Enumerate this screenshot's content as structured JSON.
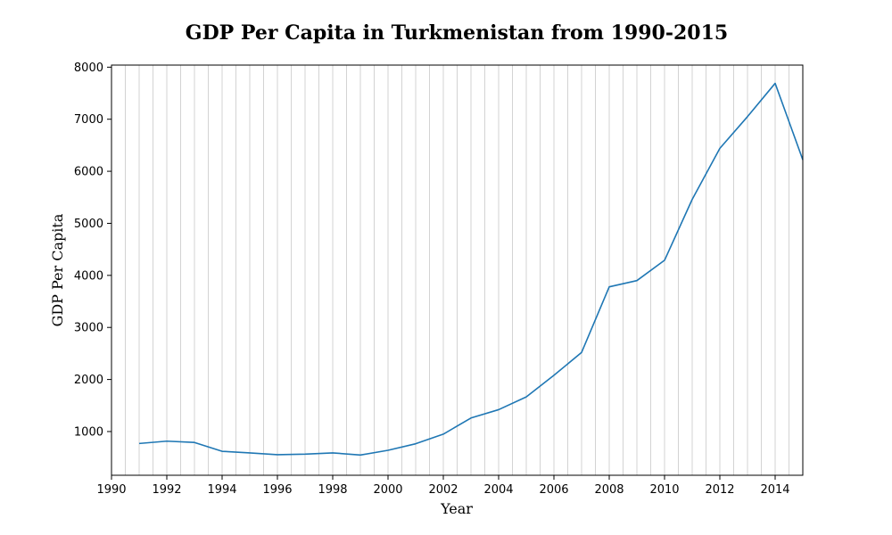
{
  "chart_data": {
    "type": "line",
    "title": "GDP Per Capita in Turkmenistan from 1990-2015",
    "xlabel": "Year",
    "ylabel": "GDP Per Capita",
    "xlim": [
      1990,
      2015
    ],
    "ylim": [
      160,
      8040
    ],
    "x_ticks": [
      1990,
      1992,
      1994,
      1996,
      1998,
      2000,
      2002,
      2004,
      2006,
      2008,
      2010,
      2012,
      2014
    ],
    "y_ticks": [
      1000,
      2000,
      3000,
      4000,
      5000,
      6000,
      7000,
      8000
    ],
    "vertical_grid": true,
    "grid_every": 0.5,
    "line_color": "#1f77b4",
    "grid_color": "#c8c8c8",
    "series": [
      {
        "x": [
          1991,
          1992,
          1993,
          1994,
          1995,
          1996,
          1997,
          1998,
          1999,
          2000,
          2001,
          2002,
          2003,
          2004,
          2005,
          2006,
          2007,
          2008,
          2009,
          2010,
          2011,
          2012,
          2013,
          2014,
          2015
        ],
        "values": [
          770,
          815,
          790,
          620,
          590,
          555,
          565,
          590,
          548,
          640,
          765,
          950,
          1260,
          1420,
          1665,
          2080,
          2520,
          3780,
          3900,
          4290,
          5460,
          6440,
          7050,
          7690,
          6220
        ]
      }
    ]
  }
}
